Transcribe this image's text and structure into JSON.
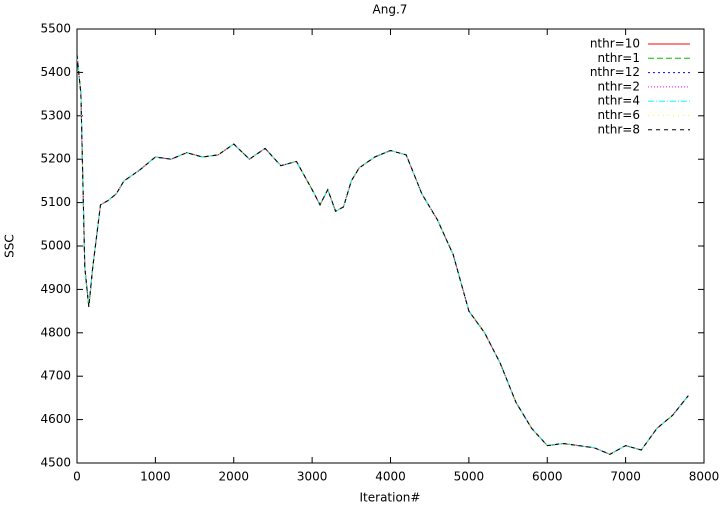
{
  "chart_data": {
    "type": "line",
    "title": "Ang.7",
    "xlabel": "Iteration#",
    "ylabel": "SSC",
    "x": [
      0,
      50,
      100,
      150,
      200,
      300,
      400,
      500,
      600,
      800,
      1000,
      1200,
      1400,
      1600,
      1800,
      2000,
      2200,
      2400,
      2600,
      2800,
      3000,
      3100,
      3200,
      3300,
      3400,
      3500,
      3600,
      3800,
      4000,
      4200,
      4400,
      4600,
      4800,
      5000,
      5200,
      5400,
      5600,
      5800,
      6000,
      6200,
      6400,
      6600,
      6800,
      7000,
      7200,
      7400,
      7600,
      7800
    ],
    "series": [
      {
        "name": "nthr=10",
        "color": "#ff0000",
        "dash": "none",
        "values": [
          5440,
          5350,
          4950,
          4860,
          4950,
          5095,
          5105,
          5120,
          5150,
          5175,
          5205,
          5200,
          5215,
          5205,
          5210,
          5235,
          5200,
          5225,
          5185,
          5195,
          5130,
          5095,
          5130,
          5080,
          5090,
          5150,
          5180,
          5205,
          5220,
          5210,
          5120,
          5060,
          4980,
          4850,
          4800,
          4730,
          4640,
          4580,
          4540,
          4545,
          4540,
          4535,
          4520,
          4540,
          4530,
          4580,
          4610,
          4655
        ]
      },
      {
        "name": "nthr=1",
        "color": "#00c000",
        "dash": "6,3",
        "values": [
          5440,
          5350,
          4950,
          4860,
          4950,
          5095,
          5105,
          5120,
          5150,
          5175,
          5205,
          5200,
          5215,
          5205,
          5210,
          5235,
          5200,
          5225,
          5185,
          5195,
          5130,
          5095,
          5130,
          5080,
          5090,
          5150,
          5180,
          5205,
          5220,
          5210,
          5120,
          5060,
          4980,
          4850,
          4800,
          4730,
          4640,
          4580,
          4540,
          4545,
          4540,
          4535,
          4520,
          4540,
          4530,
          4580,
          4610,
          4655
        ]
      },
      {
        "name": "nthr=12",
        "color": "#0000ff",
        "dash": "2,3",
        "values": [
          5440,
          5350,
          4950,
          4860,
          4950,
          5095,
          5105,
          5120,
          5150,
          5175,
          5205,
          5200,
          5215,
          5205,
          5210,
          5235,
          5200,
          5225,
          5185,
          5195,
          5130,
          5095,
          5130,
          5080,
          5090,
          5150,
          5180,
          5205,
          5220,
          5210,
          5120,
          5060,
          4980,
          4850,
          4800,
          4730,
          4640,
          4580,
          4540,
          4545,
          4540,
          4535,
          4520,
          4540,
          4530,
          4580,
          4610,
          4655
        ]
      },
      {
        "name": "nthr=2",
        "color": "#ff00ff",
        "dash": "1,2",
        "values": [
          5440,
          5350,
          4950,
          4860,
          4950,
          5095,
          5105,
          5120,
          5150,
          5175,
          5205,
          5200,
          5215,
          5205,
          5210,
          5235,
          5200,
          5225,
          5185,
          5195,
          5130,
          5095,
          5130,
          5080,
          5090,
          5150,
          5180,
          5205,
          5220,
          5210,
          5120,
          5060,
          4980,
          4850,
          4800,
          4730,
          4640,
          4580,
          4540,
          4545,
          4540,
          4535,
          4520,
          4540,
          4530,
          4580,
          4610,
          4655
        ]
      },
      {
        "name": "nthr=4",
        "color": "#00ffff",
        "dash": "6,2,1,2",
        "values": [
          5440,
          5350,
          4950,
          4860,
          4950,
          5095,
          5105,
          5120,
          5150,
          5175,
          5205,
          5200,
          5215,
          5205,
          5210,
          5235,
          5200,
          5225,
          5185,
          5195,
          5130,
          5095,
          5130,
          5080,
          5090,
          5150,
          5180,
          5205,
          5220,
          5210,
          5120,
          5060,
          4980,
          4850,
          4800,
          4730,
          4640,
          4580,
          4540,
          4545,
          4540,
          4535,
          4520,
          4540,
          4530,
          4580,
          4610,
          4655
        ]
      },
      {
        "name": "nthr=6",
        "color": "#ffff00",
        "dash": "1,4",
        "values": [
          5440,
          5350,
          4950,
          4860,
          4950,
          5095,
          5105,
          5120,
          5150,
          5175,
          5205,
          5200,
          5215,
          5205,
          5210,
          5235,
          5200,
          5225,
          5185,
          5195,
          5130,
          5095,
          5130,
          5080,
          5090,
          5150,
          5180,
          5205,
          5220,
          5210,
          5120,
          5060,
          4980,
          4850,
          4800,
          4730,
          4640,
          4580,
          4540,
          4545,
          4540,
          4535,
          4520,
          4540,
          4530,
          4580,
          4610,
          4655
        ]
      },
      {
        "name": "nthr=8",
        "color": "#000000",
        "dash": "4,4",
        "values": [
          5440,
          5350,
          4950,
          4860,
          4950,
          5095,
          5105,
          5120,
          5150,
          5175,
          5205,
          5200,
          5215,
          5205,
          5210,
          5235,
          5200,
          5225,
          5185,
          5195,
          5130,
          5095,
          5130,
          5080,
          5090,
          5150,
          5180,
          5205,
          5220,
          5210,
          5120,
          5060,
          4980,
          4850,
          4800,
          4730,
          4640,
          4580,
          4540,
          4545,
          4540,
          4535,
          4520,
          4540,
          4530,
          4580,
          4610,
          4655
        ]
      }
    ],
    "xlim": [
      0,
      8000
    ],
    "xticks": [
      0,
      1000,
      2000,
      3000,
      4000,
      5000,
      6000,
      7000,
      8000
    ],
    "ylim": [
      4500,
      5500
    ],
    "yticks": [
      4500,
      4600,
      4700,
      4800,
      4900,
      5000,
      5100,
      5200,
      5300,
      5400,
      5500
    ],
    "legend": "top-right"
  }
}
